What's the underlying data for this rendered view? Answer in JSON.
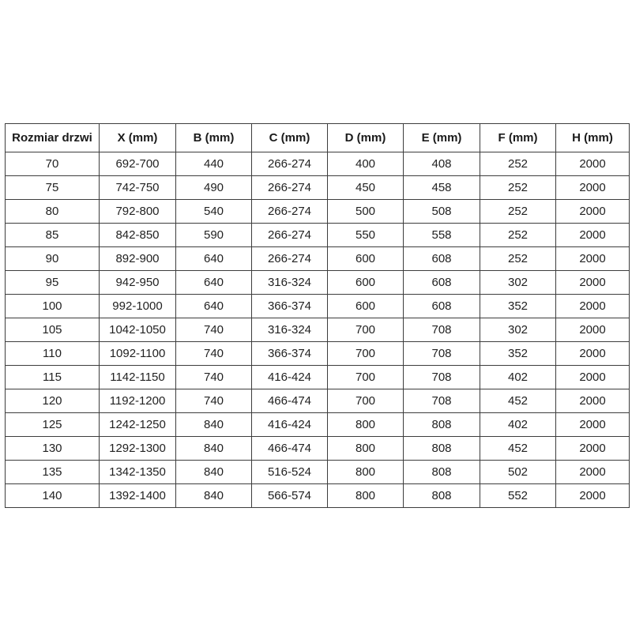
{
  "chart_data": {
    "type": "table",
    "title": "",
    "headers": [
      "Rozmiar drzwi",
      "X (mm)",
      "B (mm)",
      "C (mm)",
      "D (mm)",
      "E (mm)",
      "F (mm)",
      "H (mm)"
    ],
    "rows": [
      [
        "70",
        "692-700",
        "440",
        "266-274",
        "400",
        "408",
        "252",
        "2000"
      ],
      [
        "75",
        "742-750",
        "490",
        "266-274",
        "450",
        "458",
        "252",
        "2000"
      ],
      [
        "80",
        "792-800",
        "540",
        "266-274",
        "500",
        "508",
        "252",
        "2000"
      ],
      [
        "85",
        "842-850",
        "590",
        "266-274",
        "550",
        "558",
        "252",
        "2000"
      ],
      [
        "90",
        "892-900",
        "640",
        "266-274",
        "600",
        "608",
        "252",
        "2000"
      ],
      [
        "95",
        "942-950",
        "640",
        "316-324",
        "600",
        "608",
        "302",
        "2000"
      ],
      [
        "100",
        "992-1000",
        "640",
        "366-374",
        "600",
        "608",
        "352",
        "2000"
      ],
      [
        "105",
        "1042-1050",
        "740",
        "316-324",
        "700",
        "708",
        "302",
        "2000"
      ],
      [
        "110",
        "1092-1100",
        "740",
        "366-374",
        "700",
        "708",
        "352",
        "2000"
      ],
      [
        "115",
        "1142-1150",
        "740",
        "416-424",
        "700",
        "708",
        "402",
        "2000"
      ],
      [
        "120",
        "1192-1200",
        "740",
        "466-474",
        "700",
        "708",
        "452",
        "2000"
      ],
      [
        "125",
        "1242-1250",
        "840",
        "416-424",
        "800",
        "808",
        "402",
        "2000"
      ],
      [
        "130",
        "1292-1300",
        "840",
        "466-474",
        "800",
        "808",
        "452",
        "2000"
      ],
      [
        "135",
        "1342-1350",
        "840",
        "516-524",
        "800",
        "808",
        "502",
        "2000"
      ],
      [
        "140",
        "1392-1400",
        "840",
        "566-574",
        "800",
        "808",
        "552",
        "2000"
      ]
    ],
    "layout": {
      "grid": true,
      "header_bold": true,
      "text_align": "center"
    },
    "colors": {
      "border": "#3d3d3d",
      "text": "#1a1a1a",
      "background": "#ffffff"
    }
  }
}
